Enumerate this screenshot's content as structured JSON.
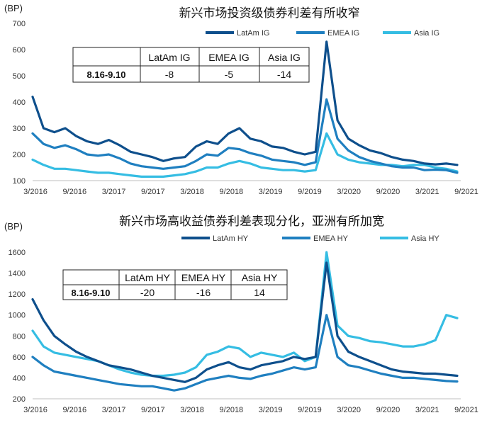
{
  "chart_data": [
    {
      "type": "line",
      "title": "新兴市场投资级债券利差有所收窄",
      "ylabel": "(BP)",
      "ylim": [
        100,
        700
      ],
      "yticks": [
        100,
        200,
        300,
        400,
        500,
        600,
        700
      ],
      "xtick_labels": [
        "3/2016",
        "9/2016",
        "3/2017",
        "9/2017",
        "3/2018",
        "9/2018",
        "3/2019",
        "9/2019",
        "3/2020",
        "9/2020",
        "3/2021",
        "9/2021"
      ],
      "legend_position": "top-right",
      "colors": {
        "LatAm IG": "#0e4f8c",
        "EMEA IG": "#1f7fc0",
        "Asia IG": "#35bde3"
      },
      "series": [
        {
          "name": "LatAm IG",
          "values": [
            420,
            300,
            285,
            300,
            270,
            250,
            240,
            255,
            235,
            210,
            200,
            190,
            175,
            185,
            190,
            230,
            250,
            240,
            280,
            300,
            260,
            250,
            230,
            225,
            210,
            200,
            210,
            630,
            330,
            260,
            235,
            215,
            205,
            190,
            180,
            175,
            165,
            162,
            165,
            160
          ]
        },
        {
          "name": "EMEA IG",
          "values": [
            280,
            240,
            225,
            235,
            220,
            200,
            195,
            200,
            185,
            165,
            155,
            150,
            145,
            150,
            155,
            175,
            200,
            195,
            225,
            220,
            205,
            195,
            180,
            175,
            170,
            160,
            170,
            410,
            260,
            215,
            190,
            175,
            165,
            155,
            150,
            150,
            140,
            142,
            140,
            130
          ]
        },
        {
          "name": "Asia IG",
          "values": [
            180,
            160,
            145,
            145,
            140,
            135,
            130,
            130,
            125,
            120,
            115,
            115,
            115,
            120,
            125,
            135,
            150,
            150,
            165,
            175,
            165,
            150,
            145,
            140,
            140,
            135,
            140,
            280,
            200,
            180,
            170,
            165,
            160,
            160,
            155,
            160,
            160,
            150,
            145,
            135
          ]
        }
      ],
      "table": {
        "columns": [
          "",
          "LatAm IG",
          "EMEA IG",
          "Asia IG"
        ],
        "rows": [
          [
            "8.16-9.10",
            "-8",
            "-5",
            "-14"
          ]
        ]
      }
    },
    {
      "type": "line",
      "title": "新兴市场高收益债券利差表现分化，亚洲有所加宽",
      "ylabel": "(BP)",
      "ylim": [
        200,
        1600
      ],
      "yticks": [
        200,
        400,
        600,
        800,
        1000,
        1200,
        1400,
        1600
      ],
      "xtick_labels": [
        "3/2016",
        "9/2016",
        "3/2017",
        "9/2017",
        "3/2018",
        "9/2018",
        "3/2019",
        "9/2019",
        "3/2020",
        "9/2020",
        "3/2021",
        "9/2021"
      ],
      "legend_position": "top-right",
      "colors": {
        "LatAm HY": "#0e4f8c",
        "EMEA HY": "#1f7fc0",
        "Asia HY": "#35bde3"
      },
      "series": [
        {
          "name": "LatAm HY",
          "values": [
            1150,
            950,
            800,
            720,
            650,
            600,
            560,
            520,
            500,
            480,
            450,
            420,
            400,
            380,
            360,
            400,
            480,
            520,
            550,
            500,
            480,
            520,
            540,
            560,
            600,
            580,
            600,
            1500,
            800,
            650,
            600,
            560,
            520,
            480,
            460,
            450,
            440,
            440,
            430,
            420
          ]
        },
        {
          "name": "EMEA HY",
          "values": [
            600,
            520,
            460,
            440,
            420,
            400,
            380,
            360,
            340,
            330,
            320,
            320,
            300,
            280,
            300,
            340,
            380,
            400,
            420,
            400,
            390,
            420,
            440,
            470,
            500,
            480,
            500,
            1000,
            600,
            520,
            500,
            470,
            440,
            420,
            400,
            400,
            390,
            380,
            370,
            365
          ]
        },
        {
          "name": "Asia HY",
          "values": [
            850,
            700,
            640,
            620,
            600,
            580,
            560,
            520,
            480,
            450,
            430,
            420,
            420,
            430,
            450,
            500,
            620,
            650,
            700,
            680,
            600,
            640,
            620,
            600,
            640,
            560,
            600,
            1600,
            900,
            800,
            780,
            750,
            740,
            720,
            700,
            700,
            720,
            760,
            1000,
            970
          ]
        }
      ],
      "table": {
        "columns": [
          "",
          "LatAm HY",
          "EMEA HY",
          "Asia HY"
        ],
        "rows": [
          [
            "8.16-9.10",
            "-20",
            "-16",
            "14"
          ]
        ]
      }
    }
  ]
}
